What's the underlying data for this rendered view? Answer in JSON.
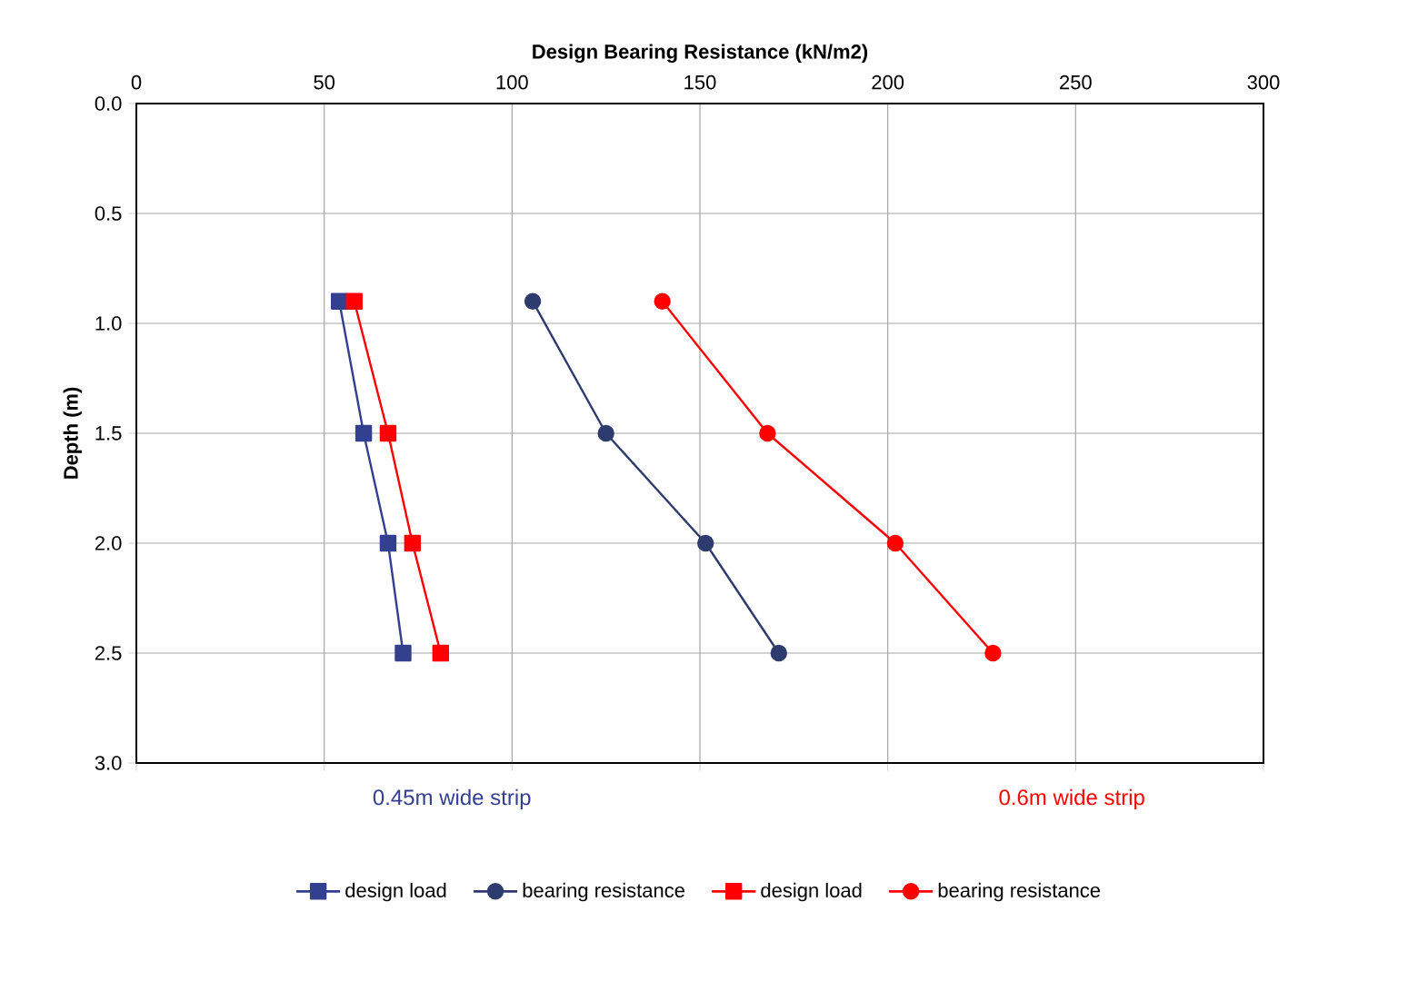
{
  "chart_data": {
    "type": "line",
    "xlabel": "Design Bearing Resistance (kN/m2)",
    "ylabel": "Depth (m)",
    "xlim": [
      0,
      300
    ],
    "xticks": [
      0,
      50,
      100,
      150,
      200,
      250,
      300
    ],
    "ylim": [
      3,
      0
    ],
    "yticks": [
      {
        "value": 0,
        "label": "0.0"
      },
      {
        "value": 0.5,
        "label": "0.5"
      },
      {
        "value": 1,
        "label": "1.0"
      },
      {
        "value": 1.5,
        "label": "1.5"
      },
      {
        "value": 2,
        "label": "2.0"
      },
      {
        "value": 2.5,
        "label": "2.5"
      },
      {
        "value": 3,
        "label": "3.0"
      }
    ],
    "grid": true,
    "legend": "bottom",
    "line_style": "solid",
    "annotations": [
      "0.45m wide strip",
      "0.6m wide strip"
    ],
    "series": [
      {
        "name": "design load",
        "color": "#333f8f",
        "marker": "square",
        "x": [
          54,
          60.5,
          67,
          71
        ],
        "values": [
          0.9,
          1.5,
          2.0,
          2.5
        ]
      },
      {
        "name": "bearing resistance",
        "color": "#2e3b6e",
        "marker": "circle",
        "x": [
          105.5,
          125,
          151.5,
          171
        ],
        "values": [
          0.9,
          1.5,
          2.0,
          2.5
        ]
      },
      {
        "name": "design load",
        "color": "#ff0000",
        "marker": "square",
        "x": [
          58,
          67,
          73.5,
          81
        ],
        "values": [
          0.9,
          1.5,
          2.0,
          2.5
        ]
      },
      {
        "name": "bearing resistance",
        "color": "#ff0000",
        "marker": "circle",
        "x": [
          140,
          168,
          202,
          228
        ],
        "values": [
          0.9,
          1.5,
          2.0,
          2.5
        ]
      }
    ]
  }
}
